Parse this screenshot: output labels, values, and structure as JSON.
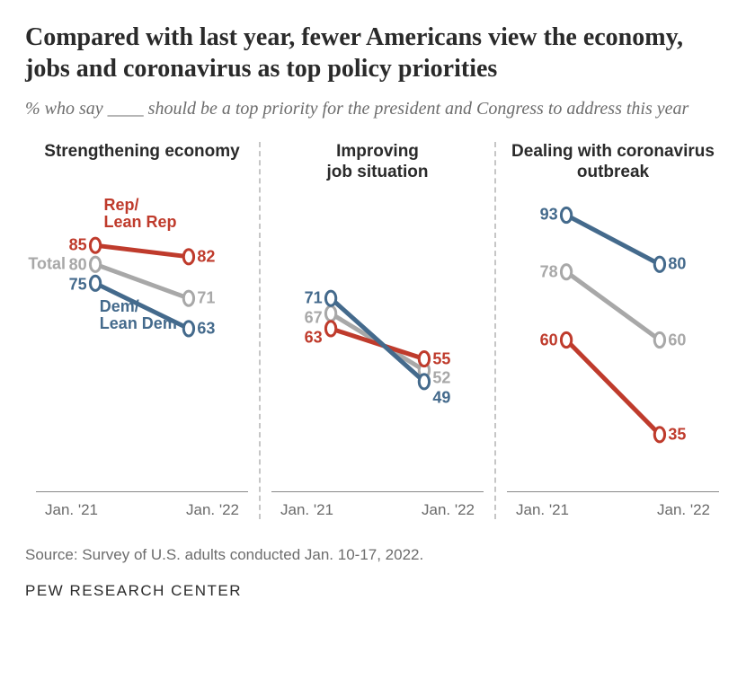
{
  "title": "Compared with last year, fewer Americans view the economy, jobs and coronavirus as top policy priorities",
  "subtitle": "% who say ____ should be a top priority for the president and Congress to address this year",
  "source": "Source: Survey of U.S. adults conducted Jan. 10-17, 2022.",
  "footer": "PEW RESEARCH CENTER",
  "x_labels": [
    "Jan. '21",
    "Jan. '22"
  ],
  "y_range": [
    20,
    100
  ],
  "colors": {
    "rep": "#bf3b2c",
    "total": "#a8a8a8",
    "dem": "#446a8c",
    "background": "#ffffff",
    "marker_fill": "#ffffff",
    "grid": "#c6c6c6",
    "axis": "#888888"
  },
  "line_width": 5,
  "marker_radius": 5.5,
  "marker_stroke": 3,
  "series_labels": {
    "rep": "Rep/\nLean Rep",
    "total": "Total",
    "dem": "Dem/\nLean Dem"
  },
  "panels": [
    {
      "title": "Strengthening economy",
      "show_series_labels": true,
      "series": {
        "rep": {
          "v21": 85,
          "v22": 82
        },
        "total": {
          "v21": 80,
          "v22": 71
        },
        "dem": {
          "v21": 75,
          "v22": 63
        }
      }
    },
    {
      "title": "Improving\njob situation",
      "show_series_labels": false,
      "series": {
        "rep": {
          "v21": 63,
          "v22": 55
        },
        "total": {
          "v21": 67,
          "v22": 52
        },
        "dem": {
          "v21": 71,
          "v22": 49
        }
      }
    },
    {
      "title": "Dealing with coronavirus outbreak",
      "show_series_labels": false,
      "series": {
        "rep": {
          "v21": 60,
          "v22": 35
        },
        "total": {
          "v21": 78,
          "v22": 60
        },
        "dem": {
          "v21": 93,
          "v22": 80
        }
      }
    }
  ]
}
